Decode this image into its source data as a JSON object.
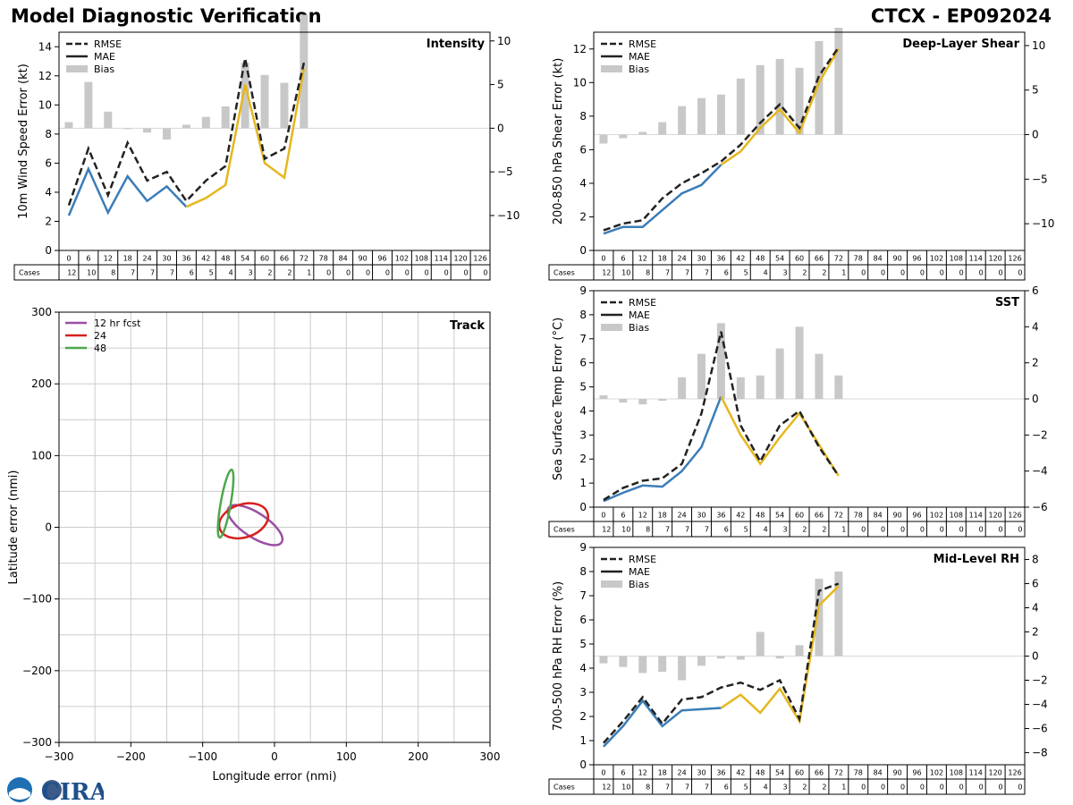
{
  "header": {
    "title_left": "Model Diagnostic Verification",
    "title_right": "CTCX - EP092024"
  },
  "legend": {
    "rmse": "RMSE",
    "mae": "MAE",
    "bias": "Bias"
  },
  "colors": {
    "rmse": "#222222",
    "mae": "#3a7db8",
    "mae_low_count": "#e6b71e",
    "bias": "#c8c8c8",
    "track_12": "#9b4fa3",
    "track_24": "#d62020",
    "track_48": "#4ca84a"
  },
  "taus": [
    0,
    6,
    12,
    18,
    24,
    30,
    36,
    42,
    48,
    54,
    60,
    66,
    72,
    78,
    84,
    90,
    96,
    102,
    108,
    114,
    120,
    126
  ],
  "cases_label": "Cases",
  "cases": [
    12,
    10,
    8,
    7,
    7,
    7,
    6,
    5,
    4,
    3,
    2,
    2,
    1,
    0,
    0,
    0,
    0,
    0,
    0,
    0,
    0,
    0
  ],
  "logo_text": "CIRA",
  "chart_data": [
    {
      "id": "intensity",
      "type": "line+bar",
      "title": "Intensity",
      "ylabel": "10m Wind Speed Error (kt)",
      "ylim": [
        0,
        15
      ],
      "yticks": [
        0,
        2,
        4,
        6,
        8,
        10,
        12,
        14
      ],
      "bias_ylim": [
        -14,
        11
      ],
      "bias_ticks": [
        -10,
        -5,
        0,
        5,
        10
      ],
      "rmse": [
        3.1,
        7.0,
        3.8,
        7.4,
        4.8,
        5.4,
        3.4,
        4.8,
        5.8,
        13.2,
        6.3,
        7.0,
        12.9
      ],
      "mae": [
        2.4,
        5.6,
        2.6,
        5.1,
        3.4,
        4.4,
        3.0,
        3.6,
        4.5,
        11.4,
        6.0,
        5.0,
        12.5
      ],
      "bias": [
        0.7,
        5.3,
        1.9,
        0.0,
        -0.5,
        -1.3,
        0.4,
        1.3,
        2.5,
        7.5,
        6.1,
        5.2,
        13.0
      ]
    },
    {
      "id": "shear",
      "type": "line+bar",
      "title": "Deep-Layer Shear",
      "ylabel": "200-850 hPa Shear Error (kt)",
      "ylim": [
        0,
        13
      ],
      "yticks": [
        0,
        2,
        4,
        6,
        8,
        10,
        12
      ],
      "bias_ylim": [
        -13,
        11.5
      ],
      "bias_ticks": [
        -10,
        -5,
        0,
        5,
        10
      ],
      "rmse": [
        1.2,
        1.6,
        1.8,
        3.1,
        4.0,
        4.6,
        5.3,
        6.3,
        7.6,
        8.7,
        7.3,
        10.4,
        12.1
      ],
      "mae": [
        1.0,
        1.4,
        1.4,
        2.4,
        3.4,
        3.9,
        5.1,
        5.9,
        7.3,
        8.4,
        7.0,
        10.0,
        12.0
      ],
      "bias": [
        -1.0,
        -0.4,
        0.3,
        1.4,
        3.2,
        4.1,
        4.5,
        6.3,
        7.8,
        8.5,
        7.5,
        10.5,
        12.0
      ]
    },
    {
      "id": "sst",
      "type": "line+bar",
      "title": "SST",
      "ylabel": "Sea Surface Temp Error (°C)",
      "ylim": [
        0,
        9
      ],
      "yticks": [
        0,
        1,
        2,
        3,
        4,
        5,
        6,
        7,
        8,
        9
      ],
      "bias_ylim": [
        -6,
        6
      ],
      "bias_ticks": [
        -6,
        -4,
        -2,
        0,
        2,
        4,
        6
      ],
      "rmse": [
        0.3,
        0.8,
        1.1,
        1.2,
        1.8,
        3.9,
        7.3,
        3.4,
        1.9,
        3.4,
        4.0,
        2.5,
        1.3
      ],
      "mae": [
        0.25,
        0.6,
        0.9,
        0.85,
        1.5,
        2.5,
        4.6,
        3.0,
        1.8,
        2.9,
        3.9,
        2.6,
        1.3
      ],
      "bias": [
        0.2,
        -0.2,
        -0.3,
        -0.1,
        1.2,
        2.5,
        4.2,
        1.2,
        1.3,
        2.8,
        4.0,
        2.5,
        1.3
      ]
    },
    {
      "id": "rh",
      "type": "line+bar",
      "title": "Mid-Level RH",
      "ylabel": "700-500 hPa RH Error (%)",
      "ylim": [
        0,
        9
      ],
      "yticks": [
        0,
        1,
        2,
        3,
        4,
        5,
        6,
        7,
        8,
        9
      ],
      "bias_ylim": [
        -9,
        9
      ],
      "bias_ticks": [
        -8,
        -6,
        -4,
        -2,
        0,
        2,
        4,
        6,
        8
      ],
      "rmse": [
        0.9,
        1.8,
        2.8,
        1.7,
        2.7,
        2.8,
        3.2,
        3.4,
        3.1,
        3.5,
        1.9,
        7.2,
        7.5
      ],
      "mae": [
        0.75,
        1.6,
        2.65,
        1.6,
        2.25,
        2.3,
        2.35,
        2.9,
        2.15,
        3.15,
        1.8,
        6.6,
        7.4
      ],
      "bias": [
        -0.6,
        -0.9,
        -1.4,
        -1.3,
        -2.0,
        -0.8,
        -0.2,
        -0.3,
        2.0,
        -0.2,
        0.9,
        6.4,
        7.0
      ]
    },
    {
      "id": "track",
      "type": "ellipse",
      "title": "Track",
      "xlabel": "Longitude error (nmi)",
      "ylabel": "Latitude error (nmi)",
      "xlim": [
        -300,
        300
      ],
      "ylim": [
        -300,
        300
      ],
      "xticks": [
        -300,
        -200,
        -100,
        0,
        100,
        200,
        300
      ],
      "yticks": [
        -300,
        -200,
        -100,
        0,
        100,
        200,
        300
      ],
      "ellipses": [
        {
          "name": "12 hr fcst",
          "cx": -27,
          "cy": 3,
          "rx": 44,
          "ry": 17,
          "angle_deg": -33
        },
        {
          "name": "24",
          "cx": -43,
          "cy": 9,
          "rx": 35,
          "ry": 23,
          "angle_deg": 18
        },
        {
          "name": "48",
          "cx": -68,
          "cy": 33,
          "rx": 48,
          "ry": 7,
          "angle_deg": 80
        }
      ]
    }
  ]
}
